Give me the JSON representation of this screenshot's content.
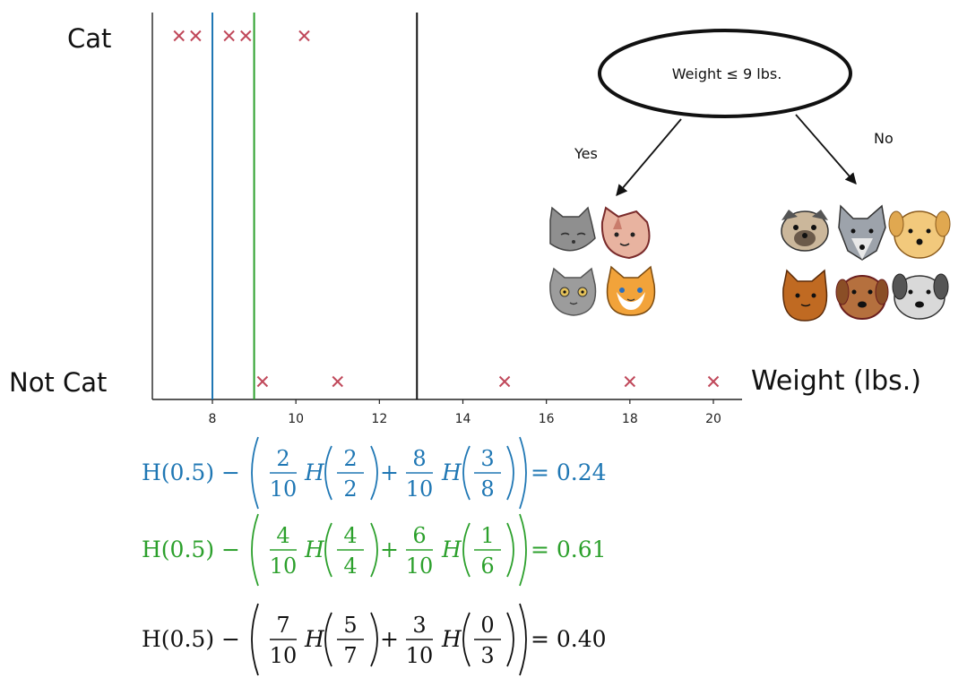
{
  "chart_data": {
    "type": "scatter",
    "ylabels": {
      "top": "Cat",
      "bottom": "Not Cat"
    },
    "xlabel": "Weight (lbs.)",
    "xticks": [
      "8",
      "10",
      "12",
      "14",
      "16",
      "18",
      "20"
    ],
    "xlim": [
      6.7,
      20.7
    ],
    "series": [
      {
        "class": "Cat",
        "x": [
          7.2,
          7.6,
          8.4,
          8.8,
          10.2
        ]
      },
      {
        "class": "Not Cat",
        "x": [
          9.2,
          11.0,
          15.0,
          18.0,
          20.0
        ]
      }
    ],
    "splits": [
      {
        "x": 8.0,
        "color": "#1f77b4"
      },
      {
        "x": 9.0,
        "color": "#2ca02c"
      },
      {
        "x": 12.9,
        "color": "#111111"
      }
    ],
    "marker_color": "#c0485a"
  },
  "tree": {
    "root": "Weight ≤ 9 lbs.",
    "yes": "Yes",
    "no": "No",
    "left_icons": [
      "gray-cat-icon",
      "pink-cat-icon",
      "gray-kitten-icon",
      "orange-cat-icon"
    ],
    "right_icons": [
      "pug-icon",
      "gray-wolf-dog-icon",
      "golden-dog-icon",
      "brown-cat-icon",
      "brown-dog-icon",
      "gray-dog-icon"
    ]
  },
  "equations": [
    {
      "color": "#1f77b4",
      "lead": "H(0.5) −",
      "f1n": "2",
      "f1d": "10",
      "h1n": "2",
      "h1d": "2",
      "plus": "+",
      "f2n": "8",
      "f2d": "10",
      "h2n": "3",
      "h2d": "8",
      "result": "= 0.24"
    },
    {
      "color": "#2ca02c",
      "lead": "H(0.5) −",
      "f1n": "4",
      "f1d": "10",
      "h1n": "4",
      "h1d": "4",
      "plus": "+",
      "f2n": "6",
      "f2d": "10",
      "h2n": "1",
      "h2d": "6",
      "result": "= 0.61"
    },
    {
      "color": "#111111",
      "lead": "H(0.5) −",
      "f1n": "7",
      "f1d": "10",
      "h1n": "5",
      "h1d": "7",
      "plus": "+",
      "f2n": "3",
      "f2d": "10",
      "h2n": "0",
      "h2d": "3",
      "result": "= 0.40"
    }
  ],
  "h_symbol": "H"
}
